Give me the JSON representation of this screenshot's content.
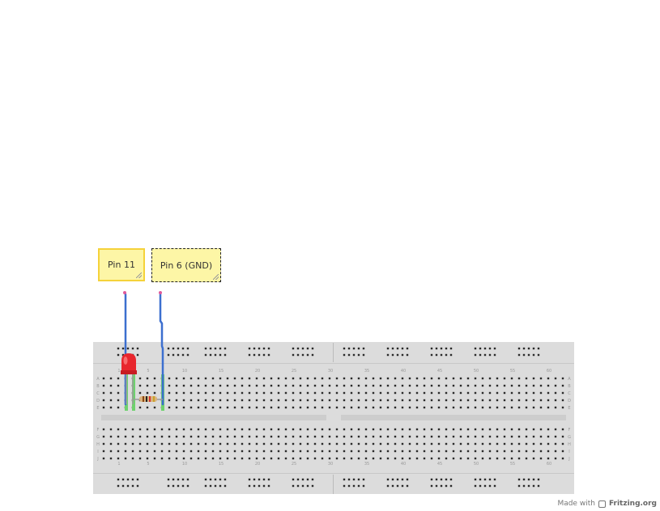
{
  "notes": [
    {
      "id": "note-1",
      "text": "Pin 11"
    },
    {
      "id": "note-2",
      "text": "Pin 6 (GND)"
    }
  ],
  "credit": {
    "prefix": "Made with",
    "brand": "Fritzing.org",
    "logo": "fritzing-logo-icon"
  },
  "breadboard": {
    "column_labels": [
      "1",
      "5",
      "10",
      "15",
      "20",
      "25",
      "30",
      "35",
      "40",
      "45",
      "50",
      "55",
      "60"
    ],
    "row_labels_top": [
      "A",
      "B",
      "C",
      "D",
      "E"
    ],
    "row_labels_bottom": [
      "F",
      "G",
      "H",
      "I",
      "J"
    ]
  },
  "components": [
    {
      "type": "led",
      "color": "#e8262d"
    },
    {
      "type": "resistor",
      "color": "#d9b27c"
    },
    {
      "type": "wire",
      "color": "#3c6fcf"
    },
    {
      "type": "wire",
      "color": "#3c6fcf"
    }
  ],
  "colors": {
    "board": "#dcdcdc",
    "hole": "#2a2a2a",
    "note": "#fdf6a6",
    "wire": "#3c6fcf",
    "connected": "#6ed16e"
  }
}
